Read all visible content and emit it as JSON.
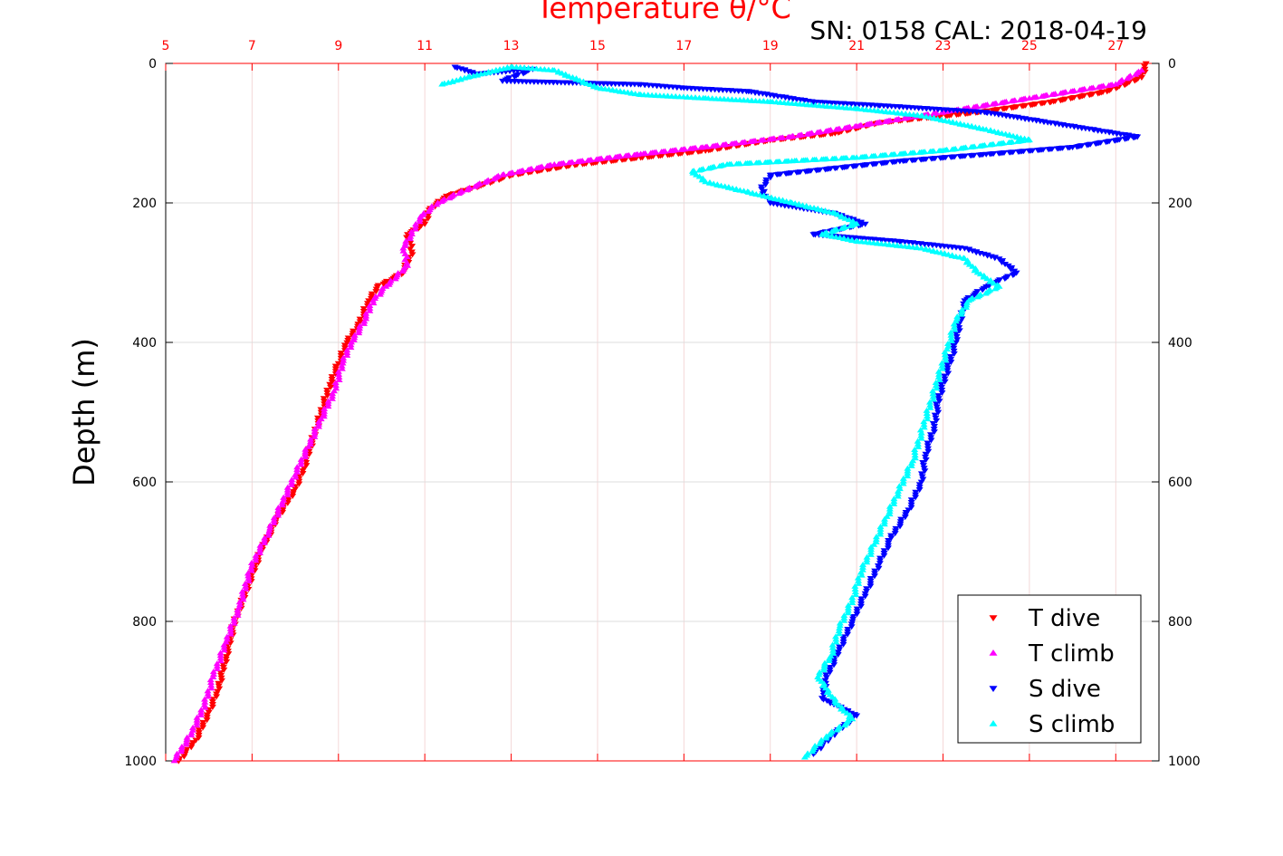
{
  "chart_data": {
    "type": "scatter",
    "title": "Temperature θ/°C",
    "annotation": "SN: 0158  CAL: 2018-04-19",
    "ylabel": "Depth (m)",
    "xlim": [
      5,
      28
    ],
    "ylim": [
      0,
      1000
    ],
    "y_reversed": true,
    "grid": true,
    "x_axis_position": "top",
    "x_axis_color": "#ff0000",
    "x_ticks": [
      "5",
      "7",
      "9",
      "11",
      "13",
      "15",
      "17",
      "19",
      "21",
      "23",
      "25",
      "27"
    ],
    "y_ticks": [
      "0",
      "200",
      "400",
      "600",
      "800",
      "1000"
    ],
    "legend_position": "bottom-right",
    "series": [
      {
        "name": "T dive",
        "marker": "triangle-down",
        "color": "#ff0000",
        "points": [
          [
            27.7,
            0
          ],
          [
            27.6,
            20
          ],
          [
            26.8,
            40
          ],
          [
            25.5,
            55
          ],
          [
            23.8,
            70
          ],
          [
            21.5,
            85
          ],
          [
            20.5,
            100
          ],
          [
            19.0,
            110
          ],
          [
            17.5,
            125
          ],
          [
            16.0,
            135
          ],
          [
            14.5,
            145
          ],
          [
            13.0,
            160
          ],
          [
            12.3,
            175
          ],
          [
            11.5,
            190
          ],
          [
            11.1,
            210
          ],
          [
            11.0,
            230
          ],
          [
            10.6,
            245
          ],
          [
            10.7,
            270
          ],
          [
            10.5,
            300
          ],
          [
            9.9,
            320
          ],
          [
            9.7,
            340
          ],
          [
            9.5,
            370
          ],
          [
            9.2,
            400
          ],
          [
            9.0,
            430
          ],
          [
            8.8,
            460
          ],
          [
            8.6,
            500
          ],
          [
            8.4,
            540
          ],
          [
            8.2,
            580
          ],
          [
            8.0,
            610
          ],
          [
            7.6,
            650
          ],
          [
            7.2,
            700
          ],
          [
            6.9,
            750
          ],
          [
            6.6,
            800
          ],
          [
            6.4,
            850
          ],
          [
            6.2,
            900
          ],
          [
            6.0,
            930
          ],
          [
            5.7,
            970
          ],
          [
            5.3,
            1000
          ]
        ]
      },
      {
        "name": "T climb",
        "marker": "triangle-up",
        "color": "#ff00ff",
        "points": [
          [
            27.6,
            10
          ],
          [
            27.0,
            30
          ],
          [
            25.0,
            50
          ],
          [
            23.0,
            70
          ],
          [
            21.0,
            90
          ],
          [
            19.5,
            105
          ],
          [
            17.5,
            120
          ],
          [
            16.0,
            130
          ],
          [
            14.0,
            145
          ],
          [
            12.8,
            160
          ],
          [
            12.0,
            180
          ],
          [
            11.3,
            200
          ],
          [
            10.9,
            220
          ],
          [
            10.7,
            245
          ],
          [
            10.5,
            265
          ],
          [
            10.6,
            290
          ],
          [
            10.1,
            320
          ],
          [
            9.8,
            340
          ],
          [
            9.6,
            370
          ],
          [
            9.3,
            400
          ],
          [
            9.1,
            430
          ],
          [
            8.9,
            470
          ],
          [
            8.6,
            510
          ],
          [
            8.3,
            550
          ],
          [
            8.0,
            590
          ],
          [
            7.7,
            630
          ],
          [
            7.4,
            670
          ],
          [
            7.0,
            720
          ],
          [
            6.7,
            780
          ],
          [
            6.4,
            830
          ],
          [
            6.1,
            880
          ],
          [
            5.9,
            920
          ],
          [
            5.6,
            960
          ],
          [
            5.2,
            1000
          ]
        ]
      },
      {
        "name": "S dive",
        "marker": "triangle-down",
        "color": "#0000ff",
        "points": [
          [
            11.7,
            5
          ],
          [
            12.2,
            15
          ],
          [
            13.5,
            8
          ],
          [
            12.8,
            25
          ],
          [
            16.0,
            30
          ],
          [
            17.0,
            35
          ],
          [
            18.5,
            40
          ],
          [
            20.0,
            55
          ],
          [
            21.5,
            60
          ],
          [
            24.0,
            70
          ],
          [
            25.5,
            85
          ],
          [
            26.5,
            95
          ],
          [
            27.5,
            105
          ],
          [
            26.0,
            120
          ],
          [
            24.0,
            130
          ],
          [
            22.0,
            140
          ],
          [
            20.5,
            150
          ],
          [
            19.0,
            160
          ],
          [
            18.8,
            180
          ],
          [
            19.0,
            200
          ],
          [
            20.5,
            215
          ],
          [
            21.2,
            230
          ],
          [
            20.0,
            245
          ],
          [
            22.0,
            255
          ],
          [
            23.5,
            265
          ],
          [
            24.3,
            280
          ],
          [
            24.7,
            300
          ],
          [
            24.0,
            320
          ],
          [
            23.5,
            340
          ],
          [
            23.4,
            370
          ],
          [
            23.3,
            400
          ],
          [
            23.1,
            440
          ],
          [
            22.9,
            480
          ],
          [
            22.8,
            520
          ],
          [
            22.6,
            560
          ],
          [
            22.5,
            600
          ],
          [
            22.2,
            640
          ],
          [
            21.8,
            680
          ],
          [
            21.5,
            720
          ],
          [
            21.2,
            760
          ],
          [
            20.9,
            800
          ],
          [
            20.6,
            840
          ],
          [
            20.3,
            880
          ],
          [
            20.2,
            910
          ],
          [
            21.0,
            935
          ],
          [
            20.5,
            960
          ],
          [
            20.0,
            990
          ]
        ]
      },
      {
        "name": "S climb",
        "marker": "triangle-up",
        "color": "#00ffff",
        "points": [
          [
            11.4,
            30
          ],
          [
            12.0,
            20
          ],
          [
            13.0,
            5
          ],
          [
            14.0,
            10
          ],
          [
            15.0,
            35
          ],
          [
            16.0,
            45
          ],
          [
            17.5,
            50
          ],
          [
            19.0,
            55
          ],
          [
            21.0,
            65
          ],
          [
            22.5,
            75
          ],
          [
            24.0,
            95
          ],
          [
            25.0,
            110
          ],
          [
            23.0,
            125
          ],
          [
            21.0,
            135
          ],
          [
            19.5,
            140
          ],
          [
            18.0,
            145
          ],
          [
            17.2,
            155
          ],
          [
            17.5,
            170
          ],
          [
            18.5,
            185
          ],
          [
            19.5,
            200
          ],
          [
            20.5,
            215
          ],
          [
            21.0,
            230
          ],
          [
            20.2,
            245
          ],
          [
            21.0,
            255
          ],
          [
            22.5,
            265
          ],
          [
            23.5,
            280
          ],
          [
            23.8,
            300
          ],
          [
            24.3,
            320
          ],
          [
            23.6,
            340
          ],
          [
            23.3,
            370
          ],
          [
            23.1,
            410
          ],
          [
            22.9,
            450
          ],
          [
            22.7,
            490
          ],
          [
            22.5,
            530
          ],
          [
            22.3,
            570
          ],
          [
            22.0,
            610
          ],
          [
            21.7,
            650
          ],
          [
            21.4,
            690
          ],
          [
            21.1,
            730
          ],
          [
            20.9,
            770
          ],
          [
            20.6,
            810
          ],
          [
            20.4,
            850
          ],
          [
            20.1,
            880
          ],
          [
            20.5,
            915
          ],
          [
            20.9,
            940
          ],
          [
            20.3,
            965
          ],
          [
            19.8,
            995
          ]
        ]
      }
    ]
  }
}
